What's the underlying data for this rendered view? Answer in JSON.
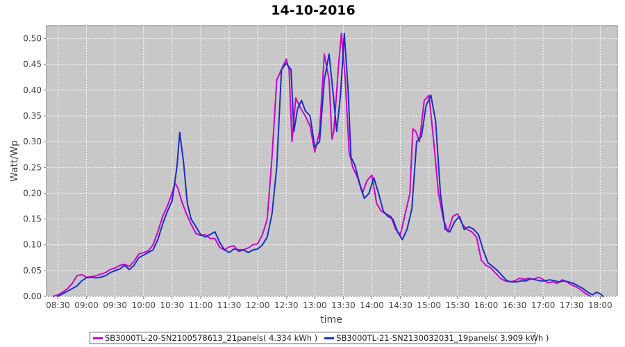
{
  "chart_data": {
    "type": "line",
    "title": "14-10-2016",
    "xlabel": "time",
    "ylabel": "Watt/Wp",
    "x_ticks": [
      "08:30",
      "09:00",
      "09:30",
      "10:00",
      "10:30",
      "11:00",
      "11:30",
      "12:00",
      "12:30",
      "13:00",
      "13:30",
      "14:00",
      "14:30",
      "15:00",
      "15:30",
      "16:00",
      "16:30",
      "17:00",
      "17:30",
      "18:00"
    ],
    "y_ticks": [
      "0.00",
      "0.05",
      "0.10",
      "0.15",
      "0.20",
      "0.25",
      "0.30",
      "0.35",
      "0.40",
      "0.45",
      "0.50"
    ],
    "ylim": [
      0,
      0.525
    ],
    "xlim": [
      "08:18",
      "18:18"
    ],
    "grid": true,
    "legend_position": "bottom",
    "background": "#c8c8c8",
    "series": [
      {
        "name": "SB3000TL-20-SN2100578613_21panels( 4.334 kWh )",
        "color": "#cc00cc",
        "points": [
          [
            "08:25",
            0.0
          ],
          [
            "08:30",
            0.003
          ],
          [
            "08:35",
            0.008
          ],
          [
            "08:40",
            0.015
          ],
          [
            "08:45",
            0.025
          ],
          [
            "08:50",
            0.04
          ],
          [
            "08:55",
            0.042
          ],
          [
            "09:00",
            0.037
          ],
          [
            "09:05",
            0.038
          ],
          [
            "09:10",
            0.04
          ],
          [
            "09:15",
            0.043
          ],
          [
            "09:20",
            0.046
          ],
          [
            "09:25",
            0.052
          ],
          [
            "09:30",
            0.055
          ],
          [
            "09:35",
            0.06
          ],
          [
            "09:40",
            0.062
          ],
          [
            "09:45",
            0.058
          ],
          [
            "09:50",
            0.068
          ],
          [
            "09:55",
            0.082
          ],
          [
            "10:00",
            0.085
          ],
          [
            "10:05",
            0.088
          ],
          [
            "10:10",
            0.1
          ],
          [
            "10:15",
            0.125
          ],
          [
            "10:20",
            0.155
          ],
          [
            "10:25",
            0.175
          ],
          [
            "10:30",
            0.2
          ],
          [
            "10:33",
            0.22
          ],
          [
            "10:36",
            0.21
          ],
          [
            "10:40",
            0.185
          ],
          [
            "10:45",
            0.16
          ],
          [
            "10:50",
            0.14
          ],
          [
            "10:55",
            0.122
          ],
          [
            "11:00",
            0.118
          ],
          [
            "11:05",
            0.12
          ],
          [
            "11:10",
            0.112
          ],
          [
            "11:15",
            0.112
          ],
          [
            "11:20",
            0.095
          ],
          [
            "11:25",
            0.09
          ],
          [
            "11:30",
            0.096
          ],
          [
            "11:35",
            0.098
          ],
          [
            "11:40",
            0.087
          ],
          [
            "11:45",
            0.09
          ],
          [
            "11:50",
            0.094
          ],
          [
            "11:55",
            0.1
          ],
          [
            "12:00",
            0.102
          ],
          [
            "12:05",
            0.12
          ],
          [
            "12:10",
            0.15
          ],
          [
            "12:15",
            0.27
          ],
          [
            "12:20",
            0.42
          ],
          [
            "12:25",
            0.44
          ],
          [
            "12:30",
            0.46
          ],
          [
            "12:33",
            0.44
          ],
          [
            "12:36",
            0.3
          ],
          [
            "12:40",
            0.385
          ],
          [
            "12:45",
            0.365
          ],
          [
            "12:50",
            0.35
          ],
          [
            "12:55",
            0.33
          ],
          [
            "13:00",
            0.28
          ],
          [
            "13:05",
            0.32
          ],
          [
            "13:10",
            0.47
          ],
          [
            "13:15",
            0.42
          ],
          [
            "13:18",
            0.305
          ],
          [
            "13:20",
            0.32
          ],
          [
            "13:25",
            0.45
          ],
          [
            "13:28",
            0.51
          ],
          [
            "13:32",
            0.42
          ],
          [
            "13:36",
            0.28
          ],
          [
            "13:40",
            0.25
          ],
          [
            "13:45",
            0.23
          ],
          [
            "13:50",
            0.2
          ],
          [
            "13:55",
            0.225
          ],
          [
            "14:00",
            0.235
          ],
          [
            "14:05",
            0.18
          ],
          [
            "14:10",
            0.165
          ],
          [
            "14:15",
            0.16
          ],
          [
            "14:20",
            0.155
          ],
          [
            "14:25",
            0.13
          ],
          [
            "14:30",
            0.12
          ],
          [
            "14:35",
            0.16
          ],
          [
            "14:40",
            0.2
          ],
          [
            "14:43",
            0.325
          ],
          [
            "14:46",
            0.32
          ],
          [
            "14:50",
            0.3
          ],
          [
            "14:55",
            0.38
          ],
          [
            "15:00",
            0.39
          ],
          [
            "15:05",
            0.3
          ],
          [
            "15:10",
            0.2
          ],
          [
            "15:15",
            0.15
          ],
          [
            "15:20",
            0.125
          ],
          [
            "15:25",
            0.155
          ],
          [
            "15:30",
            0.16
          ],
          [
            "15:35",
            0.14
          ],
          [
            "15:40",
            0.13
          ],
          [
            "15:45",
            0.125
          ],
          [
            "15:50",
            0.115
          ],
          [
            "15:55",
            0.07
          ],
          [
            "16:00",
            0.06
          ],
          [
            "16:05",
            0.055
          ],
          [
            "16:10",
            0.045
          ],
          [
            "16:15",
            0.035
          ],
          [
            "16:20",
            0.03
          ],
          [
            "16:25",
            0.028
          ],
          [
            "16:30",
            0.03
          ],
          [
            "16:35",
            0.035
          ],
          [
            "16:40",
            0.033
          ],
          [
            "16:45",
            0.035
          ],
          [
            "16:50",
            0.033
          ],
          [
            "16:55",
            0.037
          ],
          [
            "17:00",
            0.033
          ],
          [
            "17:05",
            0.026
          ],
          [
            "17:10",
            0.028
          ],
          [
            "17:15",
            0.025
          ],
          [
            "17:20",
            0.032
          ],
          [
            "17:25",
            0.028
          ],
          [
            "17:30",
            0.022
          ],
          [
            "17:35",
            0.018
          ],
          [
            "17:40",
            0.012
          ],
          [
            "17:45",
            0.005
          ],
          [
            "17:50",
            0.0
          ]
        ]
      },
      {
        "name": "SB3000TL-21-SN2130032031_19panels( 3.909 kWh )",
        "color": "#1a2ec4",
        "points": [
          [
            "08:30",
            0.0
          ],
          [
            "08:35",
            0.005
          ],
          [
            "08:40",
            0.01
          ],
          [
            "08:45",
            0.015
          ],
          [
            "08:50",
            0.02
          ],
          [
            "08:55",
            0.03
          ],
          [
            "09:00",
            0.036
          ],
          [
            "09:05",
            0.037
          ],
          [
            "09:10",
            0.036
          ],
          [
            "09:15",
            0.037
          ],
          [
            "09:20",
            0.04
          ],
          [
            "09:25",
            0.046
          ],
          [
            "09:30",
            0.05
          ],
          [
            "09:35",
            0.053
          ],
          [
            "09:40",
            0.06
          ],
          [
            "09:45",
            0.052
          ],
          [
            "09:50",
            0.06
          ],
          [
            "09:55",
            0.075
          ],
          [
            "10:00",
            0.08
          ],
          [
            "10:05",
            0.085
          ],
          [
            "10:10",
            0.09
          ],
          [
            "10:15",
            0.11
          ],
          [
            "10:20",
            0.14
          ],
          [
            "10:25",
            0.165
          ],
          [
            "10:30",
            0.185
          ],
          [
            "10:35",
            0.25
          ],
          [
            "10:38",
            0.318
          ],
          [
            "10:42",
            0.26
          ],
          [
            "10:46",
            0.18
          ],
          [
            "10:50",
            0.15
          ],
          [
            "10:55",
            0.135
          ],
          [
            "11:00",
            0.12
          ],
          [
            "11:05",
            0.115
          ],
          [
            "11:10",
            0.12
          ],
          [
            "11:15",
            0.125
          ],
          [
            "11:20",
            0.105
          ],
          [
            "11:25",
            0.09
          ],
          [
            "11:30",
            0.085
          ],
          [
            "11:35",
            0.092
          ],
          [
            "11:40",
            0.09
          ],
          [
            "11:45",
            0.09
          ],
          [
            "11:50",
            0.085
          ],
          [
            "11:55",
            0.09
          ],
          [
            "12:00",
            0.092
          ],
          [
            "12:05",
            0.1
          ],
          [
            "12:10",
            0.115
          ],
          [
            "12:15",
            0.16
          ],
          [
            "12:20",
            0.25
          ],
          [
            "12:25",
            0.44
          ],
          [
            "12:30",
            0.452
          ],
          [
            "12:35",
            0.44
          ],
          [
            "12:38",
            0.32
          ],
          [
            "12:42",
            0.365
          ],
          [
            "12:46",
            0.38
          ],
          [
            "12:50",
            0.36
          ],
          [
            "12:55",
            0.35
          ],
          [
            "13:00",
            0.29
          ],
          [
            "13:05",
            0.3
          ],
          [
            "13:10",
            0.42
          ],
          [
            "13:15",
            0.47
          ],
          [
            "13:20",
            0.38
          ],
          [
            "13:23",
            0.32
          ],
          [
            "13:27",
            0.39
          ],
          [
            "13:31",
            0.51
          ],
          [
            "13:35",
            0.4
          ],
          [
            "13:38",
            0.27
          ],
          [
            "13:42",
            0.255
          ],
          [
            "13:47",
            0.22
          ],
          [
            "13:52",
            0.19
          ],
          [
            "13:57",
            0.2
          ],
          [
            "14:02",
            0.23
          ],
          [
            "14:07",
            0.2
          ],
          [
            "14:12",
            0.165
          ],
          [
            "14:17",
            0.155
          ],
          [
            "14:22",
            0.15
          ],
          [
            "14:27",
            0.125
          ],
          [
            "14:32",
            0.11
          ],
          [
            "14:37",
            0.13
          ],
          [
            "14:42",
            0.17
          ],
          [
            "14:47",
            0.3
          ],
          [
            "14:52",
            0.31
          ],
          [
            "14:57",
            0.37
          ],
          [
            "15:02",
            0.39
          ],
          [
            "15:07",
            0.34
          ],
          [
            "15:12",
            0.2
          ],
          [
            "15:17",
            0.13
          ],
          [
            "15:22",
            0.125
          ],
          [
            "15:27",
            0.145
          ],
          [
            "15:32",
            0.155
          ],
          [
            "15:37",
            0.13
          ],
          [
            "15:42",
            0.135
          ],
          [
            "15:47",
            0.13
          ],
          [
            "15:52",
            0.12
          ],
          [
            "15:57",
            0.09
          ],
          [
            "16:02",
            0.065
          ],
          [
            "16:07",
            0.058
          ],
          [
            "16:12",
            0.05
          ],
          [
            "16:17",
            0.04
          ],
          [
            "16:22",
            0.03
          ],
          [
            "16:27",
            0.028
          ],
          [
            "16:32",
            0.028
          ],
          [
            "16:37",
            0.03
          ],
          [
            "16:42",
            0.03
          ],
          [
            "16:47",
            0.034
          ],
          [
            "16:52",
            0.032
          ],
          [
            "16:57",
            0.03
          ],
          [
            "17:02",
            0.03
          ],
          [
            "17:07",
            0.032
          ],
          [
            "17:12",
            0.03
          ],
          [
            "17:17",
            0.028
          ],
          [
            "17:22",
            0.03
          ],
          [
            "17:27",
            0.028
          ],
          [
            "17:32",
            0.025
          ],
          [
            "17:37",
            0.02
          ],
          [
            "17:42",
            0.015
          ],
          [
            "17:47",
            0.008
          ],
          [
            "17:52",
            0.003
          ],
          [
            "17:56",
            0.008
          ],
          [
            "18:00",
            0.005
          ],
          [
            "18:03",
            0.0
          ]
        ]
      }
    ]
  }
}
